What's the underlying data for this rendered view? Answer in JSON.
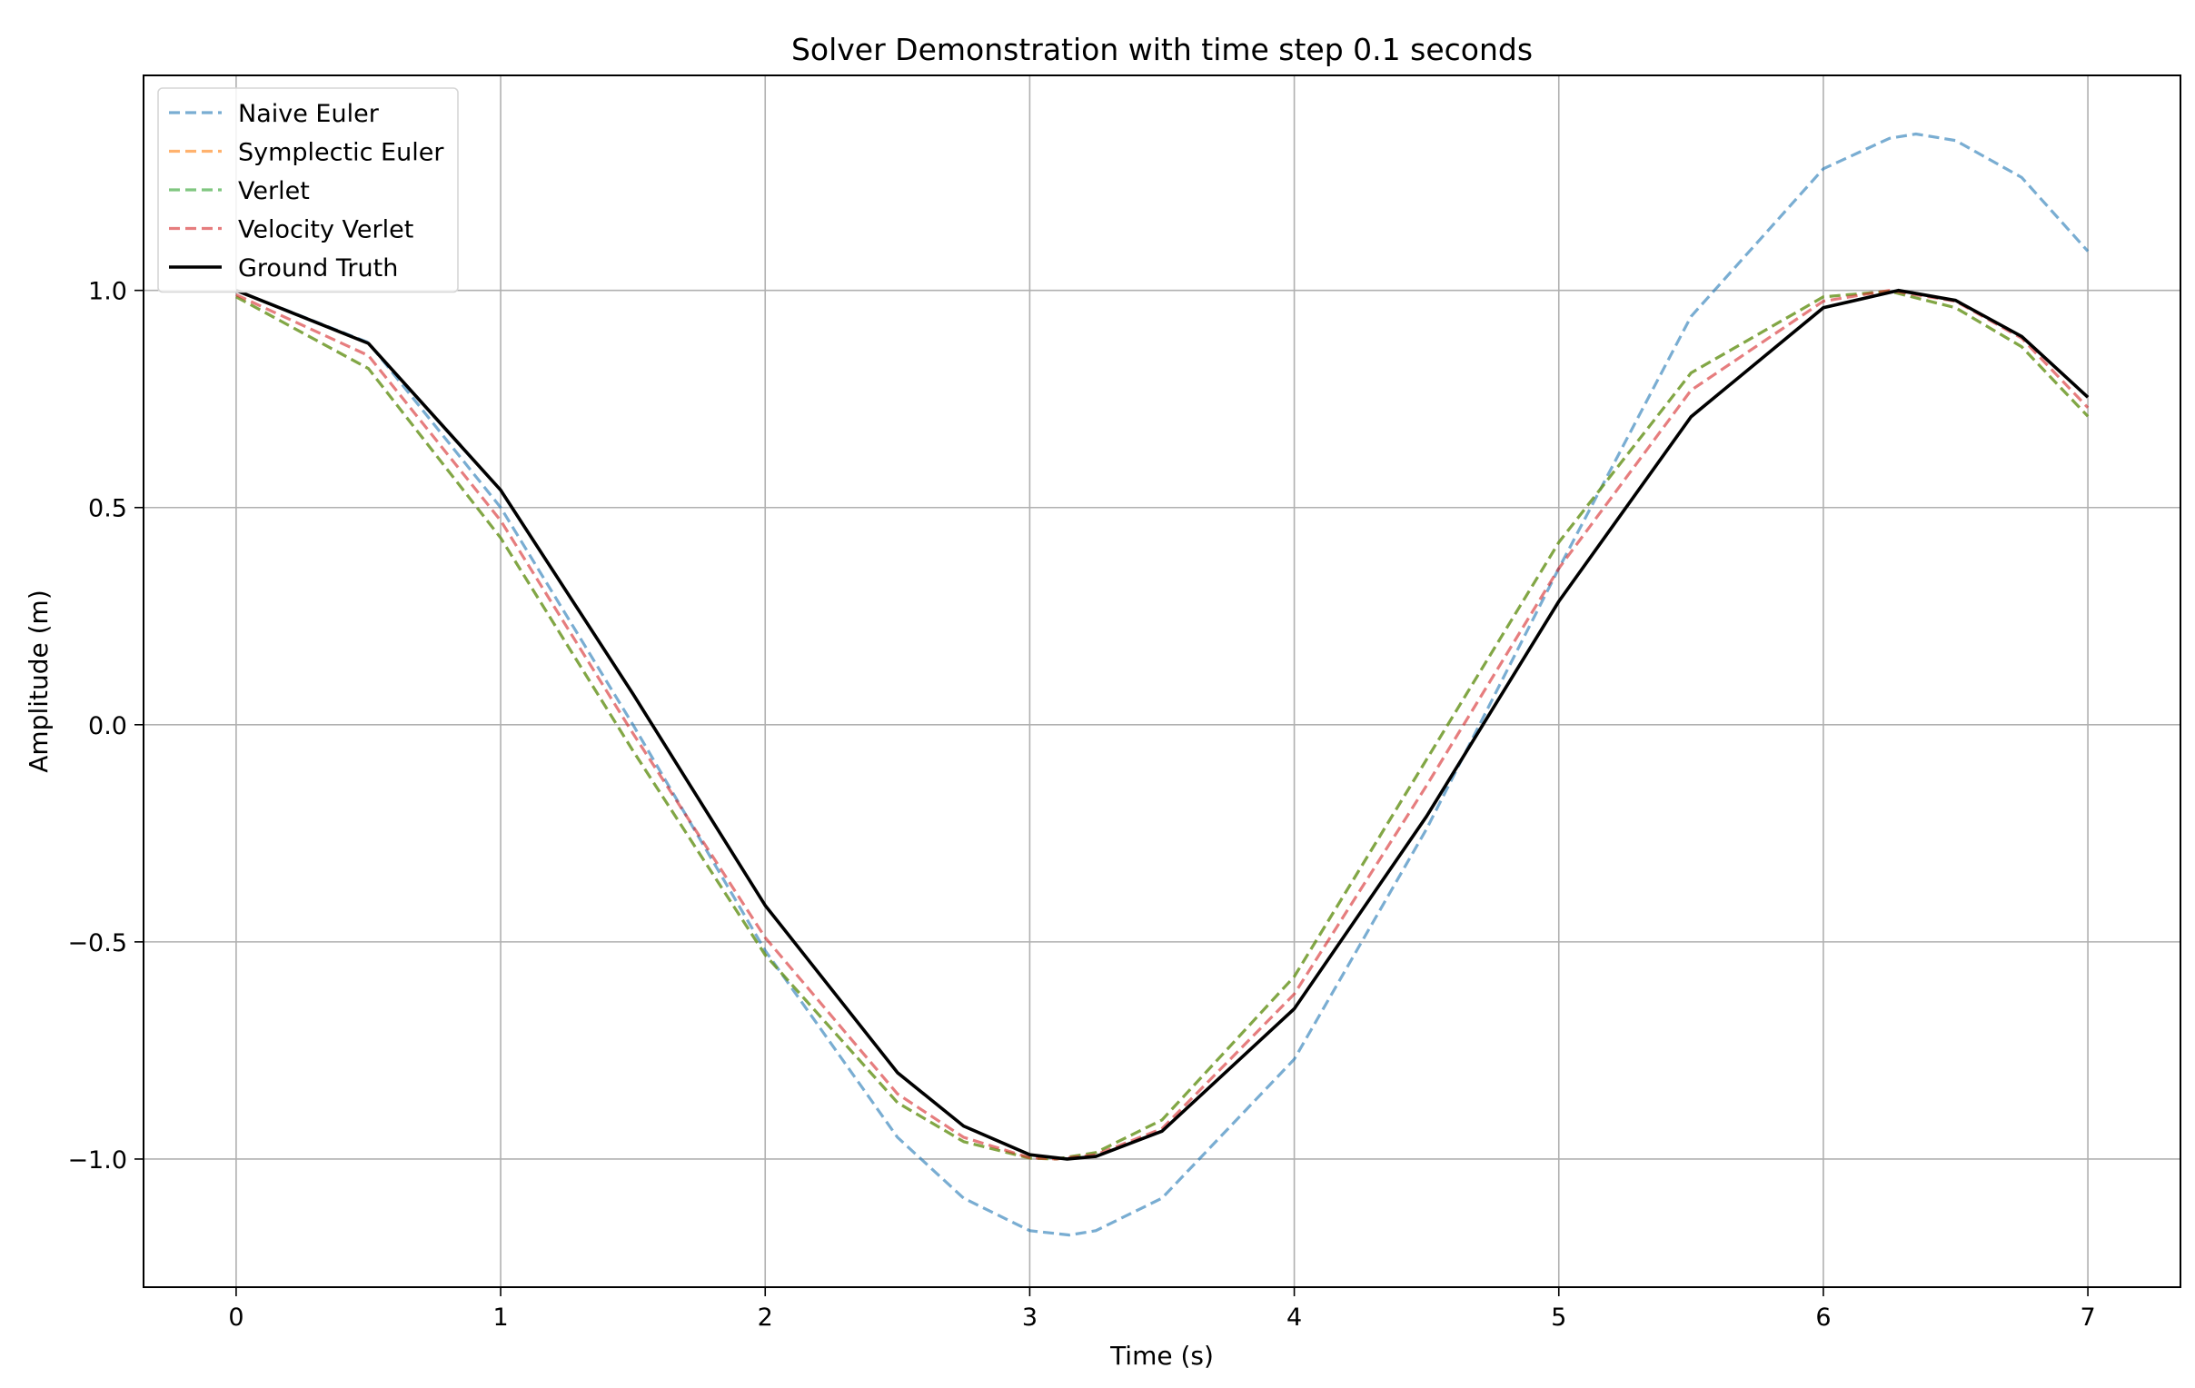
{
  "chart_data": {
    "type": "line",
    "title": "Solver Demonstration with time step 0.1 seconds",
    "xlabel": "Time (s)",
    "ylabel": "Amplitude (m)",
    "xlim": [
      -0.35,
      7.35
    ],
    "ylim": [
      -1.295,
      1.495
    ],
    "x_ticks": [
      0,
      1,
      2,
      3,
      4,
      5,
      6,
      7
    ],
    "x_tick_labels": [
      "0",
      "1",
      "2",
      "3",
      "4",
      "5",
      "6",
      "7"
    ],
    "y_ticks": [
      1.0,
      0.5,
      0.0,
      -0.5,
      -1.0
    ],
    "y_tick_labels": [
      "1.0",
      "0.5",
      "0.0",
      "−0.5",
      "−1.0"
    ],
    "grid": true,
    "legend_position": "top-left",
    "series": [
      {
        "name": "Naive Euler",
        "color": "#1f77b4",
        "style": "dashed",
        "x": [
          0,
          0.5,
          1.0,
          1.5,
          2.0,
          2.5,
          2.75,
          3.0,
          3.15,
          3.25,
          3.5,
          4.0,
          4.5,
          5.0,
          5.5,
          6.0,
          6.25,
          6.35,
          6.5,
          6.75,
          7.0
        ],
        "y": [
          1.0,
          0.88,
          0.5,
          0.0,
          -0.52,
          -0.95,
          -1.09,
          -1.165,
          -1.175,
          -1.165,
          -1.09,
          -0.77,
          -0.24,
          0.36,
          0.94,
          1.28,
          1.35,
          1.36,
          1.345,
          1.26,
          1.09
        ]
      },
      {
        "name": "Symplectic Euler",
        "color": "#ff7f0e",
        "style": "dashed",
        "x": [
          0,
          0.5,
          1.0,
          1.5,
          2.0,
          2.5,
          2.75,
          3.0,
          3.1,
          3.25,
          3.5,
          4.0,
          4.5,
          5.0,
          5.5,
          6.0,
          6.25,
          6.5,
          6.75,
          7.0
        ],
        "y": [
          0.985,
          0.82,
          0.43,
          -0.06,
          -0.53,
          -0.87,
          -0.96,
          -0.998,
          -1.0,
          -0.985,
          -0.91,
          -0.58,
          -0.08,
          0.42,
          0.81,
          0.985,
          0.998,
          0.96,
          0.87,
          0.71
        ]
      },
      {
        "name": "Verlet",
        "color": "#2ca02c",
        "style": "dashed",
        "x": [
          0,
          0.5,
          1.0,
          1.5,
          2.0,
          2.5,
          2.75,
          3.0,
          3.1,
          3.25,
          3.5,
          4.0,
          4.5,
          5.0,
          5.5,
          6.0,
          6.25,
          6.5,
          6.75,
          7.0
        ],
        "y": [
          0.985,
          0.82,
          0.43,
          -0.06,
          -0.53,
          -0.87,
          -0.96,
          -0.998,
          -1.0,
          -0.985,
          -0.91,
          -0.58,
          -0.08,
          0.42,
          0.81,
          0.985,
          0.998,
          0.96,
          0.87,
          0.71
        ]
      },
      {
        "name": "Velocity Verlet",
        "color": "#d62728",
        "style": "dashed",
        "x": [
          0,
          0.5,
          1.0,
          1.5,
          2.0,
          2.5,
          2.75,
          3.0,
          3.1,
          3.25,
          3.5,
          4.0,
          4.5,
          5.0,
          5.5,
          6.0,
          6.25,
          6.5,
          6.75,
          7.0
        ],
        "y": [
          0.99,
          0.85,
          0.47,
          -0.02,
          -0.49,
          -0.85,
          -0.95,
          -0.997,
          -1.0,
          -0.99,
          -0.93,
          -0.62,
          -0.14,
          0.36,
          0.77,
          0.975,
          1.0,
          0.975,
          0.89,
          0.73
        ]
      },
      {
        "name": "Ground Truth",
        "color": "#000000",
        "style": "solid",
        "x": [
          0,
          0.5,
          1.0,
          1.5,
          2.0,
          2.5,
          2.75,
          3.0,
          3.1416,
          3.25,
          3.5,
          4.0,
          4.5,
          5.0,
          5.5,
          6.0,
          6.2832,
          6.5,
          6.75,
          7.0
        ],
        "y": [
          1.0,
          0.878,
          0.54,
          0.071,
          -0.416,
          -0.801,
          -0.924,
          -0.99,
          -1.0,
          -0.994,
          -0.936,
          -0.654,
          -0.211,
          0.284,
          0.709,
          0.96,
          1.0,
          0.977,
          0.894,
          0.754
        ]
      }
    ]
  }
}
